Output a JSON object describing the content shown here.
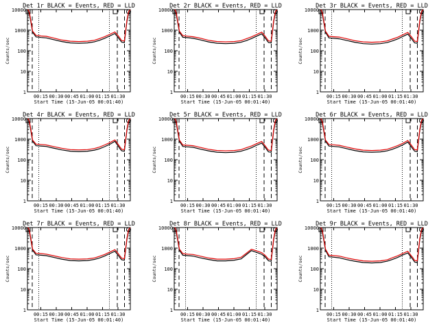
{
  "colors": {
    "events": "#000000",
    "lld": "#e00000",
    "axis": "#000000",
    "background": "#ffffff"
  },
  "panel_template": {
    "title_suffix": " BLACK = Events, RED = LLD",
    "ylabel": "Counts/sec",
    "xlabel": "Start Time (15-Jun-05 00:01:40)",
    "y_scale": "log",
    "ylim": [
      1,
      10000
    ],
    "ytick_labels": [
      "1",
      "10",
      "100",
      "1000",
      "10000"
    ],
    "xlim_seconds": [
      0,
      6000
    ],
    "xtick_labels": [
      "00:15",
      "00:30",
      "00:45",
      "01:00",
      "01:15",
      "01:30"
    ]
  },
  "chart_data": [
    {
      "type": "line",
      "title": "Det 1r",
      "series": [
        {
          "name": "Events",
          "x": [
            0,
            60,
            120,
            200,
            300,
            500,
            800,
            1100,
            1500,
            2000,
            2500,
            3000,
            3500,
            3900,
            4200,
            4500,
            4800,
            5100,
            5300,
            5400,
            5450,
            5500,
            5650,
            5800,
            5900,
            6000
          ],
          "y": [
            10000,
            9000,
            6000,
            2500,
            800,
            470,
            440,
            420,
            350,
            280,
            240,
            230,
            240,
            270,
            320,
            400,
            520,
            680,
            430,
            330,
            290,
            260,
            250,
            2600,
            7500,
            10000
          ]
        },
        {
          "name": "LLD",
          "x": [
            0,
            60,
            120,
            200,
            300,
            500,
            800,
            1100,
            1500,
            2000,
            2500,
            3000,
            3500,
            3900,
            4200,
            4500,
            4800,
            5100,
            5300,
            5400,
            5450,
            5500,
            5650,
            5800,
            5900,
            6000
          ],
          "y": [
            10000,
            9500,
            6800,
            2900,
            900,
            560,
            520,
            500,
            420,
            330,
            290,
            280,
            290,
            320,
            390,
            480,
            620,
            820,
            520,
            400,
            350,
            310,
            300,
            3000,
            8000,
            10000
          ]
        }
      ]
    },
    {
      "type": "line",
      "title": "Det 2r",
      "series": [
        {
          "name": "Events",
          "x": [
            0,
            60,
            120,
            200,
            300,
            500,
            800,
            1100,
            1500,
            2000,
            2500,
            3000,
            3500,
            3900,
            4200,
            4500,
            4800,
            5100,
            5300,
            5400,
            5450,
            5500,
            5650,
            5800,
            5900,
            6000
          ],
          "y": [
            10000,
            9000,
            6000,
            2500,
            800,
            450,
            430,
            400,
            340,
            270,
            230,
            220,
            230,
            260,
            310,
            390,
            510,
            660,
            420,
            320,
            280,
            250,
            240,
            2600,
            7500,
            10000
          ]
        },
        {
          "name": "LLD",
          "x": [
            0,
            60,
            120,
            200,
            300,
            500,
            800,
            1100,
            1500,
            2000,
            2500,
            3000,
            3500,
            3900,
            4200,
            4500,
            4800,
            5100,
            5300,
            5400,
            5450,
            5500,
            5650,
            5800,
            5900,
            6000
          ],
          "y": [
            10000,
            9500,
            6800,
            2900,
            900,
            540,
            510,
            480,
            410,
            320,
            280,
            270,
            280,
            310,
            380,
            470,
            610,
            800,
            510,
            390,
            340,
            300,
            290,
            3000,
            8000,
            10000
          ]
        }
      ]
    },
    {
      "type": "line",
      "title": "Det 3r",
      "series": [
        {
          "name": "Events",
          "x": [
            0,
            60,
            120,
            200,
            300,
            500,
            800,
            1100,
            1500,
            2000,
            2500,
            3000,
            3500,
            3900,
            4200,
            4500,
            4800,
            5100,
            5300,
            5400,
            5450,
            5500,
            5650,
            5800,
            5900,
            6000
          ],
          "y": [
            10000,
            9000,
            6000,
            2500,
            800,
            420,
            400,
            380,
            320,
            260,
            220,
            210,
            220,
            250,
            300,
            370,
            490,
            640,
            400,
            310,
            270,
            240,
            230,
            2600,
            7500,
            10000
          ]
        },
        {
          "name": "LLD",
          "x": [
            0,
            60,
            120,
            200,
            300,
            500,
            800,
            1100,
            1500,
            2000,
            2500,
            3000,
            3500,
            3900,
            4200,
            4500,
            4800,
            5100,
            5300,
            5400,
            5450,
            5500,
            5650,
            5800,
            5900,
            6000
          ],
          "y": [
            10000,
            9500,
            6800,
            2900,
            900,
            500,
            480,
            460,
            390,
            310,
            270,
            260,
            270,
            300,
            370,
            450,
            590,
            780,
            490,
            380,
            330,
            290,
            280,
            3000,
            8000,
            10000
          ]
        }
      ]
    },
    {
      "type": "line",
      "title": "Det 4r",
      "series": [
        {
          "name": "Events",
          "x": [
            0,
            60,
            120,
            200,
            300,
            500,
            800,
            1100,
            1500,
            2000,
            2500,
            3000,
            3500,
            3900,
            4200,
            4500,
            4800,
            5100,
            5300,
            5400,
            5450,
            5500,
            5650,
            5800,
            5900,
            6000
          ],
          "y": [
            10000,
            9000,
            6000,
            2500,
            800,
            480,
            460,
            440,
            370,
            300,
            260,
            250,
            260,
            290,
            340,
            430,
            560,
            780,
            450,
            340,
            300,
            270,
            260,
            2600,
            7500,
            10000
          ]
        },
        {
          "name": "LLD",
          "x": [
            0,
            60,
            120,
            200,
            300,
            500,
            800,
            1100,
            1500,
            2000,
            2500,
            3000,
            3500,
            3900,
            4200,
            4500,
            4800,
            5100,
            5300,
            5400,
            5450,
            5500,
            5650,
            5800,
            5900,
            6000
          ],
          "y": [
            10000,
            9500,
            6800,
            2900,
            900,
            570,
            550,
            520,
            440,
            360,
            310,
            300,
            310,
            350,
            410,
            520,
            670,
            920,
            540,
            410,
            360,
            320,
            310,
            3000,
            8000,
            10000
          ]
        }
      ]
    },
    {
      "type": "line",
      "title": "Det 5r",
      "series": [
        {
          "name": "Events",
          "x": [
            0,
            60,
            120,
            200,
            300,
            500,
            800,
            1100,
            1500,
            2000,
            2500,
            3000,
            3500,
            3900,
            4200,
            4500,
            4800,
            5100,
            5300,
            5400,
            5450,
            5500,
            5650,
            5800,
            5900,
            6000
          ],
          "y": [
            10000,
            9000,
            6000,
            2500,
            800,
            440,
            420,
            400,
            330,
            270,
            230,
            220,
            230,
            260,
            310,
            380,
            500,
            640,
            400,
            310,
            270,
            240,
            230,
            2600,
            7500,
            10000
          ]
        },
        {
          "name": "LLD",
          "x": [
            0,
            60,
            120,
            200,
            300,
            500,
            800,
            1100,
            1500,
            2000,
            2500,
            3000,
            3500,
            3900,
            4200,
            4500,
            4800,
            5100,
            5300,
            5400,
            5450,
            5500,
            5650,
            5800,
            5900,
            6000
          ],
          "y": [
            10000,
            9500,
            6800,
            2900,
            900,
            520,
            500,
            480,
            400,
            320,
            280,
            270,
            280,
            310,
            380,
            460,
            600,
            770,
            480,
            370,
            320,
            290,
            280,
            3000,
            8000,
            10000
          ]
        }
      ]
    },
    {
      "type": "line",
      "title": "Det 6r",
      "series": [
        {
          "name": "Events",
          "x": [
            0,
            60,
            120,
            200,
            300,
            500,
            800,
            1100,
            1500,
            2000,
            2500,
            3000,
            3500,
            3900,
            4200,
            4500,
            4800,
            5100,
            5300,
            5400,
            5450,
            5500,
            5650,
            5800,
            5900,
            6000
          ],
          "y": [
            10000,
            9000,
            6000,
            2500,
            800,
            460,
            440,
            420,
            350,
            280,
            240,
            230,
            240,
            270,
            320,
            400,
            520,
            720,
            430,
            330,
            290,
            260,
            250,
            2600,
            7500,
            10000
          ]
        },
        {
          "name": "LLD",
          "x": [
            0,
            60,
            120,
            200,
            300,
            500,
            800,
            1100,
            1500,
            2000,
            2500,
            3000,
            3500,
            3900,
            4200,
            4500,
            4800,
            5100,
            5300,
            5400,
            5450,
            5500,
            5650,
            5800,
            5900,
            6000
          ],
          "y": [
            10000,
            9500,
            6800,
            2900,
            900,
            550,
            530,
            500,
            420,
            340,
            290,
            280,
            290,
            320,
            390,
            480,
            620,
            860,
            520,
            400,
            350,
            310,
            300,
            3000,
            8000,
            10000
          ]
        }
      ]
    },
    {
      "type": "line",
      "title": "Det 7r",
      "series": [
        {
          "name": "Events",
          "x": [
            0,
            60,
            120,
            200,
            300,
            500,
            800,
            1100,
            1500,
            2000,
            2500,
            3000,
            3500,
            3900,
            4200,
            4500,
            4800,
            5100,
            5300,
            5400,
            5450,
            5500,
            5650,
            5800,
            5900,
            6000
          ],
          "y": [
            10000,
            9000,
            6000,
            2500,
            800,
            470,
            450,
            430,
            360,
            290,
            250,
            240,
            250,
            280,
            330,
            410,
            540,
            700,
            440,
            340,
            300,
            270,
            260,
            2600,
            7500,
            10000
          ]
        },
        {
          "name": "LLD",
          "x": [
            0,
            60,
            120,
            200,
            300,
            500,
            800,
            1100,
            1500,
            2000,
            2500,
            3000,
            3500,
            3900,
            4200,
            4500,
            4800,
            5100,
            5300,
            5400,
            5450,
            5500,
            5650,
            5800,
            5900,
            6000
          ],
          "y": [
            10000,
            9500,
            6800,
            2900,
            900,
            560,
            540,
            510,
            430,
            350,
            300,
            290,
            300,
            330,
            400,
            490,
            640,
            840,
            530,
            410,
            360,
            320,
            310,
            3000,
            8000,
            10000
          ]
        }
      ]
    },
    {
      "type": "line",
      "title": "Det 8r",
      "series": [
        {
          "name": "Events",
          "x": [
            0,
            60,
            120,
            200,
            300,
            500,
            800,
            1100,
            1500,
            2000,
            2500,
            3000,
            3500,
            3900,
            4200,
            4500,
            4800,
            5100,
            5300,
            5400,
            5450,
            5500,
            5650,
            5800,
            5900,
            6000
          ],
          "y": [
            10000,
            9000,
            6000,
            2500,
            800,
            450,
            430,
            410,
            340,
            280,
            240,
            240,
            260,
            300,
            480,
            750,
            620,
            500,
            380,
            300,
            270,
            240,
            230,
            2600,
            7500,
            10000
          ]
        },
        {
          "name": "LLD",
          "x": [
            0,
            60,
            120,
            200,
            300,
            500,
            800,
            1100,
            1500,
            2000,
            2500,
            3000,
            3500,
            3900,
            4200,
            4500,
            4800,
            5100,
            5300,
            5400,
            5450,
            5500,
            5650,
            5800,
            5900,
            6000
          ],
          "y": [
            10000,
            9500,
            6800,
            2900,
            900,
            540,
            510,
            490,
            410,
            330,
            290,
            290,
            310,
            360,
            560,
            880,
            740,
            600,
            450,
            360,
            320,
            290,
            280,
            3000,
            8000,
            10000
          ]
        }
      ]
    },
    {
      "type": "line",
      "title": "Det 9r",
      "series": [
        {
          "name": "Events",
          "x": [
            0,
            60,
            120,
            200,
            300,
            500,
            800,
            1100,
            1500,
            2000,
            2500,
            3000,
            3500,
            3900,
            4200,
            4500,
            4800,
            5100,
            5300,
            5400,
            5450,
            5500,
            5650,
            5800,
            5900,
            6000
          ],
          "y": [
            10000,
            9000,
            6000,
            2500,
            800,
            380,
            360,
            340,
            280,
            230,
            200,
            190,
            200,
            230,
            280,
            350,
            460,
            580,
            360,
            280,
            240,
            210,
            200,
            2600,
            7500,
            10000
          ]
        },
        {
          "name": "LLD",
          "x": [
            0,
            60,
            120,
            200,
            300,
            500,
            800,
            1100,
            1500,
            2000,
            2500,
            3000,
            3500,
            3900,
            4200,
            4500,
            4800,
            5100,
            5300,
            5400,
            5450,
            5500,
            5650,
            5800,
            5900,
            6000
          ],
          "y": [
            10000,
            9500,
            6800,
            2900,
            900,
            450,
            430,
            410,
            340,
            280,
            240,
            230,
            240,
            270,
            340,
            420,
            550,
            700,
            430,
            340,
            290,
            250,
            240,
            3000,
            8000,
            10000
          ]
        }
      ]
    }
  ]
}
